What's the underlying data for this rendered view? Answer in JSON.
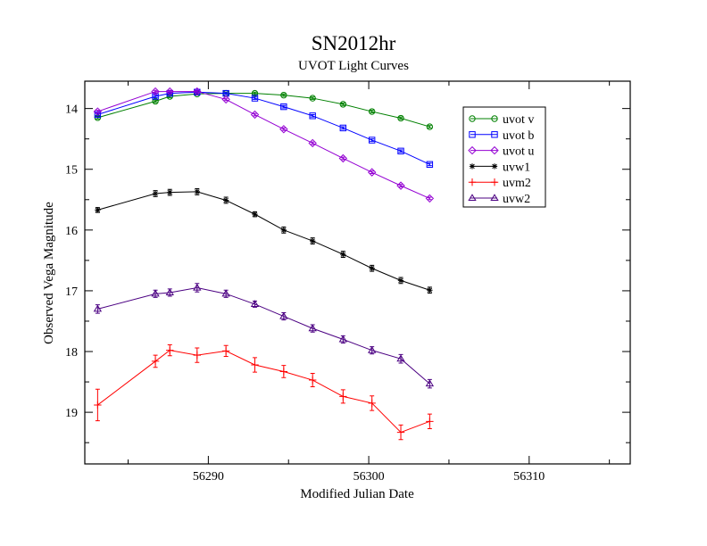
{
  "chart_data": {
    "type": "line",
    "title": "SN2012hr",
    "subtitle": "UVOT Light Curves",
    "xlabel": "Modified Julian Date",
    "ylabel": "Observed Vega Magnitude",
    "xlim": [
      56282.3,
      56316.3
    ],
    "ylim": [
      19.85,
      13.55
    ],
    "y_inverted": true,
    "x_ticks": [
      56290,
      56300,
      56310
    ],
    "x_minor_ticks": [
      56285,
      56295,
      56305,
      56315
    ],
    "y_ticks": [
      14,
      15,
      16,
      17,
      18,
      19
    ],
    "y_minor_ticks": [
      14.5,
      15.5,
      16.5,
      17.5,
      18.5,
      19.5
    ],
    "grid": false,
    "legend_position": "top-right",
    "series": [
      {
        "name": "uvot v",
        "color": "#008000",
        "marker": "circle",
        "x": [
          56283.1,
          56286.7,
          56287.6,
          56289.3,
          56291.1,
          56292.9,
          56294.7,
          56296.5,
          56298.4,
          56300.2,
          56302.0,
          56303.8
        ],
        "y": [
          14.15,
          13.88,
          13.8,
          13.76,
          13.75,
          13.75,
          13.78,
          13.83,
          13.93,
          14.05,
          14.16,
          14.3
        ],
        "err": [
          0.02,
          0.02,
          0.02,
          0.02,
          0.02,
          0.02,
          0.02,
          0.02,
          0.02,
          0.02,
          0.02,
          0.02
        ]
      },
      {
        "name": "uvot b",
        "color": "#0000ff",
        "marker": "square",
        "x": [
          56283.1,
          56286.7,
          56287.6,
          56289.3,
          56291.1,
          56292.9,
          56294.7,
          56296.5,
          56298.4,
          56300.2,
          56302.0,
          56303.8
        ],
        "y": [
          14.1,
          13.8,
          13.75,
          13.73,
          13.75,
          13.83,
          13.97,
          14.12,
          14.32,
          14.52,
          14.7,
          14.92
        ],
        "err": [
          0.02,
          0.02,
          0.02,
          0.02,
          0.02,
          0.02,
          0.02,
          0.02,
          0.02,
          0.02,
          0.02,
          0.02
        ]
      },
      {
        "name": "uvot u",
        "color": "#9400d3",
        "marker": "diamond",
        "x": [
          56283.1,
          56286.7,
          56287.6,
          56289.3,
          56291.1,
          56292.9,
          56294.7,
          56296.5,
          56298.4,
          56300.2,
          56302.0,
          56303.8
        ],
        "y": [
          14.05,
          13.72,
          13.72,
          13.72,
          13.85,
          14.1,
          14.34,
          14.57,
          14.82,
          15.05,
          15.27,
          15.48
        ],
        "err": [
          0.02,
          0.02,
          0.02,
          0.02,
          0.02,
          0.02,
          0.02,
          0.02,
          0.02,
          0.02,
          0.02,
          0.02
        ]
      },
      {
        "name": "uvw1",
        "color": "#000000",
        "marker": "star",
        "x": [
          56283.1,
          56286.7,
          56287.6,
          56289.3,
          56291.1,
          56292.9,
          56294.7,
          56296.5,
          56298.4,
          56300.2,
          56302.0,
          56303.8
        ],
        "y": [
          15.67,
          15.4,
          15.38,
          15.37,
          15.51,
          15.74,
          16.0,
          16.18,
          16.4,
          16.63,
          16.83,
          16.99
        ],
        "err": [
          0.04,
          0.05,
          0.05,
          0.05,
          0.05,
          0.04,
          0.05,
          0.05,
          0.05,
          0.05,
          0.05,
          0.05
        ]
      },
      {
        "name": "uvm2",
        "color": "#ff0000",
        "marker": "plus",
        "x": [
          56283.1,
          56286.7,
          56287.6,
          56289.3,
          56291.1,
          56292.9,
          56294.7,
          56296.5,
          56298.4,
          56300.2,
          56302.0,
          56303.8
        ],
        "y": [
          18.88,
          18.16,
          17.98,
          18.06,
          17.99,
          18.22,
          18.33,
          18.47,
          18.74,
          18.85,
          19.33,
          19.15
        ],
        "err": [
          0.26,
          0.1,
          0.09,
          0.12,
          0.09,
          0.12,
          0.1,
          0.11,
          0.11,
          0.12,
          0.12,
          0.12
        ]
      },
      {
        "name": "uvw2",
        "color": "#4b0082",
        "marker": "triangle",
        "x": [
          56283.1,
          56286.7,
          56287.6,
          56289.3,
          56291.1,
          56292.9,
          56294.7,
          56296.5,
          56298.4,
          56300.2,
          56302.0,
          56303.8
        ],
        "y": [
          17.3,
          17.05,
          17.03,
          16.95,
          17.05,
          17.22,
          17.42,
          17.62,
          17.8,
          17.98,
          18.12,
          18.53
        ],
        "err": [
          0.07,
          0.06,
          0.06,
          0.07,
          0.06,
          0.05,
          0.06,
          0.06,
          0.06,
          0.06,
          0.07,
          0.07
        ]
      }
    ]
  }
}
